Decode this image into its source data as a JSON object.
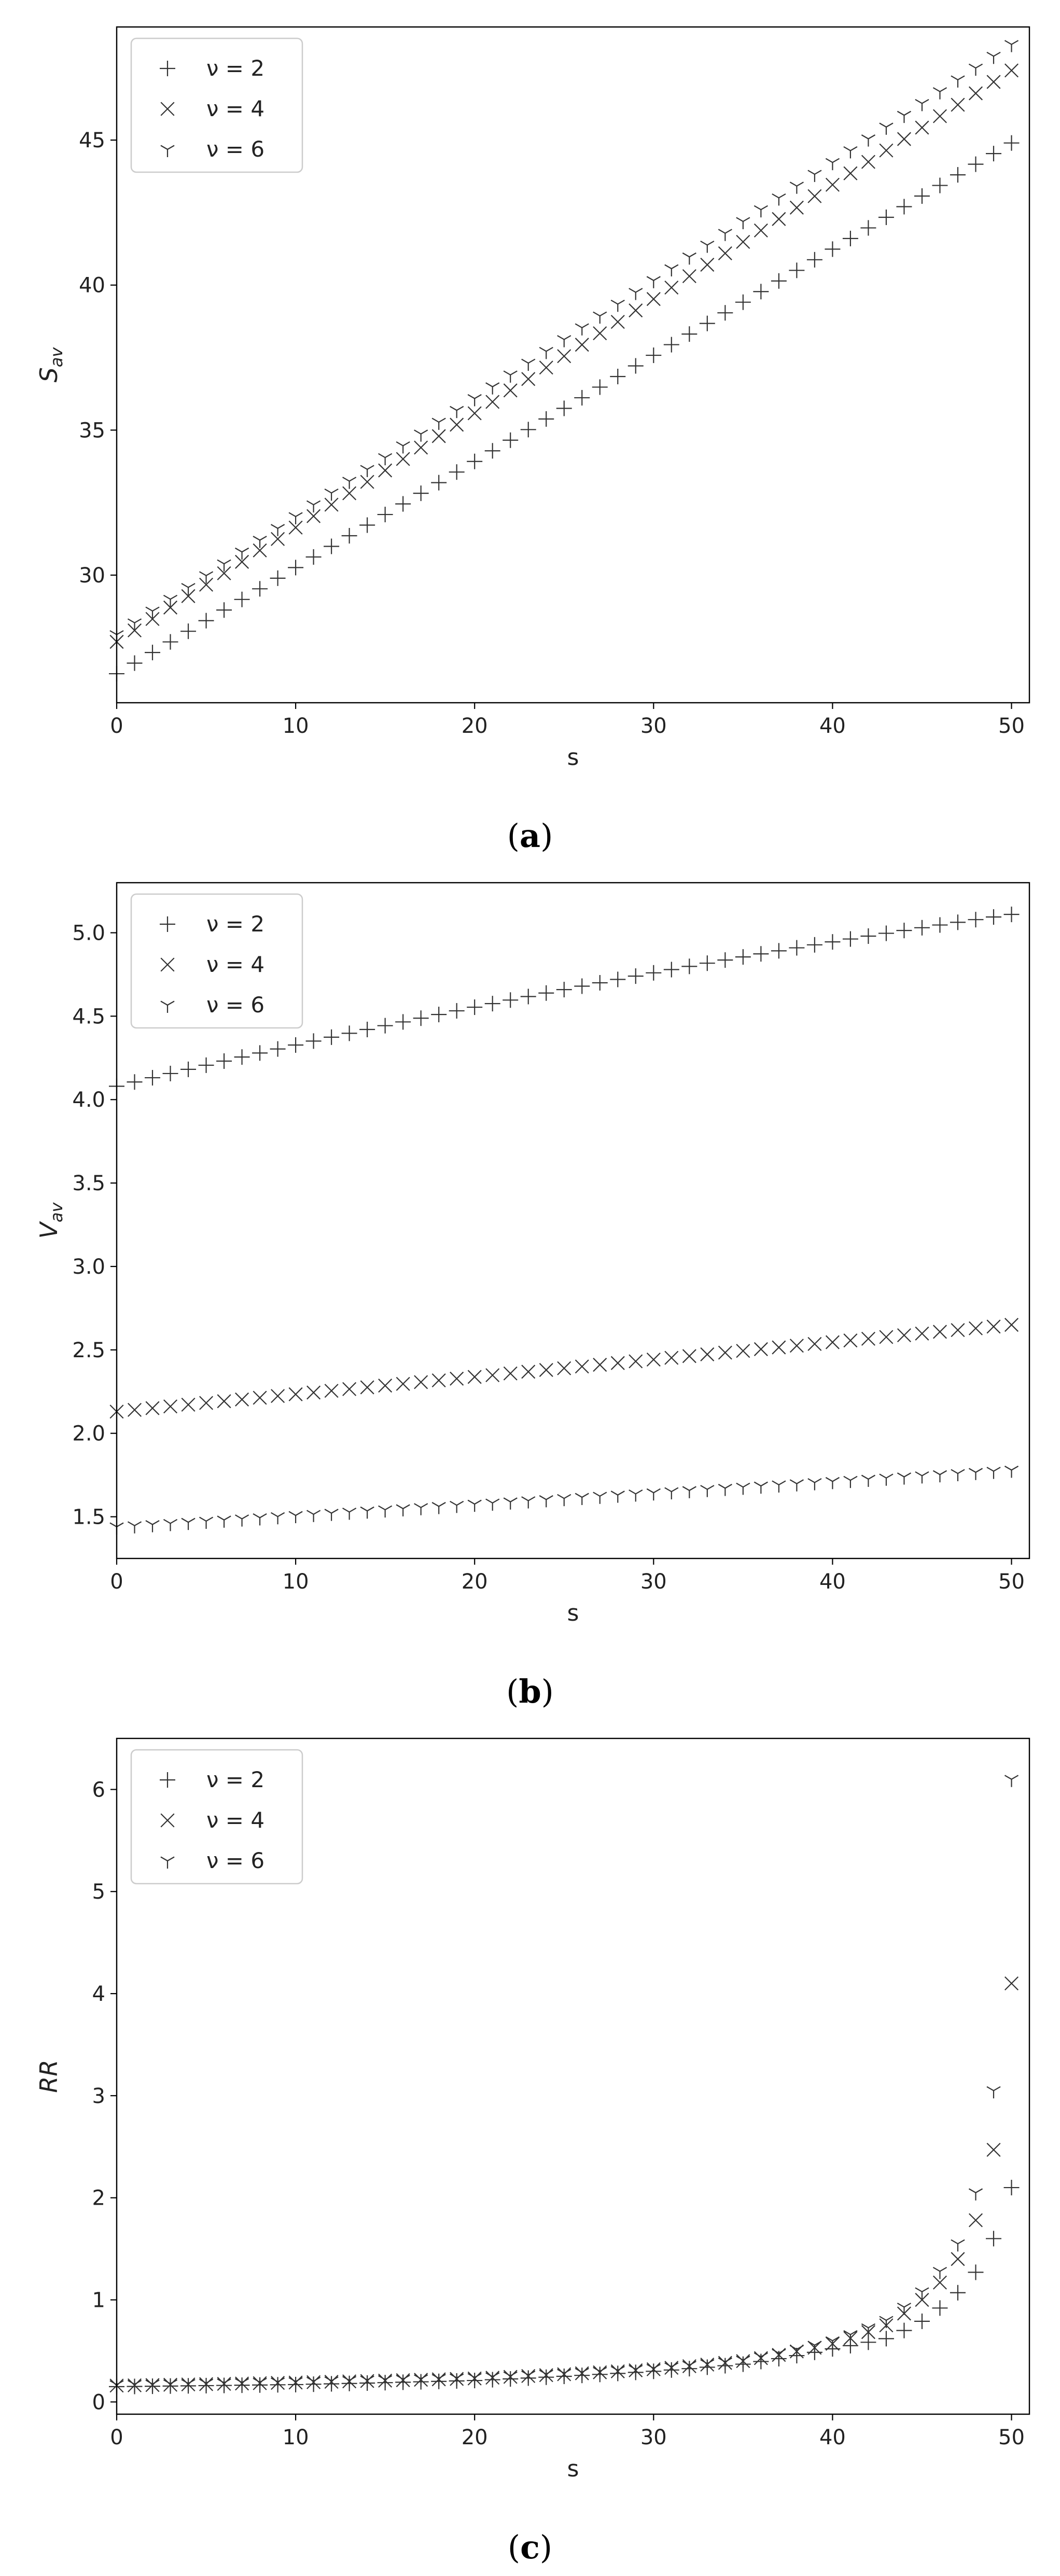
{
  "chart_data": [
    {
      "type": "scatter",
      "panel_label": "a",
      "ylabel": "S_av",
      "xlabel": "s",
      "xlim": [
        0,
        51
      ],
      "ylim": [
        25.6,
        48.9
      ],
      "xticks": [
        0,
        10,
        20,
        30,
        40,
        50
      ],
      "yticks": [
        30,
        35,
        40,
        45
      ],
      "legend": "top-left",
      "grid": false,
      "series": [
        {
          "name": "ν = 2",
          "marker": "plus",
          "x": [
            0,
            50
          ],
          "y": [
            26.6,
            44.9
          ],
          "shape": "linear"
        },
        {
          "name": "ν = 4",
          "marker": "x",
          "x": [
            0,
            50
          ],
          "y": [
            27.7,
            47.4
          ],
          "shape": "linear"
        },
        {
          "name": "ν = 6",
          "marker": "tri",
          "x": [
            0,
            50
          ],
          "y": [
            27.95,
            48.3
          ],
          "shape": "linear"
        }
      ]
    },
    {
      "type": "scatter",
      "panel_label": "b",
      "ylabel": "V_av",
      "xlabel": "s",
      "xlim": [
        0,
        51
      ],
      "ylim": [
        1.25,
        5.3
      ],
      "xticks": [
        0,
        10,
        20,
        30,
        40,
        50
      ],
      "yticks": [
        1.5,
        2.0,
        2.5,
        3.0,
        3.5,
        4.0,
        4.5,
        5.0
      ],
      "legend": "top-left",
      "grid": false,
      "series": [
        {
          "name": "ν = 2",
          "marker": "plus",
          "x": [
            0,
            50
          ],
          "y": [
            4.08,
            5.11
          ],
          "shape": "concave"
        },
        {
          "name": "ν = 4",
          "marker": "x",
          "x": [
            0,
            50
          ],
          "y": [
            2.13,
            2.65
          ],
          "shape": "linear"
        },
        {
          "name": "ν = 6",
          "marker": "tri",
          "x": [
            0,
            50
          ],
          "y": [
            1.44,
            1.78
          ],
          "shape": "linear"
        }
      ]
    },
    {
      "type": "scatter",
      "panel_label": "c",
      "ylabel": "RR",
      "xlabel": "s",
      "xlim": [
        0,
        51
      ],
      "ylim": [
        -0.12,
        6.5
      ],
      "xticks": [
        0,
        10,
        20,
        30,
        40,
        50
      ],
      "yticks": [
        0,
        1,
        2,
        3,
        4,
        5,
        6
      ],
      "legend": "top-left",
      "grid": false,
      "series": [
        {
          "name": "ν = 2",
          "marker": "plus",
          "x": [
            0,
            10,
            20,
            30,
            35,
            40,
            43,
            45,
            46,
            47,
            48,
            49,
            50
          ],
          "y": [
            0.15,
            0.17,
            0.21,
            0.3,
            0.37,
            0.52,
            0.62,
            0.79,
            0.92,
            1.07,
            1.27,
            1.6,
            2.1
          ]
        },
        {
          "name": "ν = 4",
          "marker": "x",
          "x": [
            0,
            10,
            20,
            30,
            35,
            40,
            43,
            45,
            46,
            47,
            48,
            49,
            50
          ],
          "y": [
            0.16,
            0.19,
            0.23,
            0.32,
            0.4,
            0.57,
            0.75,
            1.0,
            1.17,
            1.4,
            1.78,
            2.47,
            4.1
          ]
        },
        {
          "name": "ν = 6",
          "marker": "tri",
          "x": [
            0,
            10,
            20,
            30,
            35,
            40,
            43,
            45,
            46,
            47,
            48,
            49,
            50
          ],
          "y": [
            0.17,
            0.2,
            0.24,
            0.33,
            0.41,
            0.6,
            0.8,
            1.08,
            1.28,
            1.55,
            2.05,
            3.05,
            6.1
          ]
        }
      ]
    }
  ]
}
